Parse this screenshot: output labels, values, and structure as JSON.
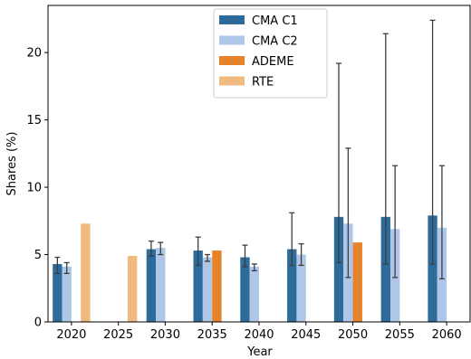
{
  "chart_data": {
    "type": "bar",
    "title": "",
    "xlabel": "Year",
    "ylabel": "Shares (%)",
    "ylim": [
      0,
      23.5
    ],
    "yticks": [
      0,
      5,
      10,
      15,
      20
    ],
    "grid": false,
    "legend_position": "top-center",
    "categories": [
      "2020",
      "2025",
      "2030",
      "2035",
      "2040",
      "2045",
      "2050",
      "2055",
      "2060"
    ],
    "series": [
      {
        "name": "CMA C1",
        "color": "#2d6b9a",
        "values": [
          4.3,
          null,
          5.4,
          5.3,
          4.8,
          5.4,
          7.8,
          7.8,
          7.9
        ],
        "error_low": [
          3.6,
          null,
          4.9,
          4.2,
          4.1,
          4.2,
          4.4,
          4.3,
          4.3
        ],
        "error_high": [
          4.8,
          null,
          6.0,
          6.3,
          5.7,
          8.1,
          19.2,
          21.4,
          22.4
        ]
      },
      {
        "name": "CMA C2",
        "color": "#aec7e8",
        "values": [
          4.1,
          null,
          5.5,
          4.8,
          4.1,
          5.0,
          7.3,
          6.9,
          7.0
        ],
        "error_low": [
          3.6,
          null,
          5.0,
          4.5,
          3.8,
          4.2,
          3.3,
          3.3,
          3.2
        ],
        "error_high": [
          4.4,
          null,
          5.9,
          5.0,
          4.3,
          5.8,
          12.9,
          11.6,
          11.6
        ]
      },
      {
        "name": "ADEME",
        "color": "#e6832a",
        "values": [
          null,
          null,
          null,
          5.3,
          null,
          null,
          5.9,
          null,
          null
        ]
      },
      {
        "name": "RTE",
        "color": "#f0b97e",
        "values": [
          7.3,
          4.9,
          null,
          null,
          null,
          null,
          null,
          null,
          null
        ]
      }
    ]
  }
}
